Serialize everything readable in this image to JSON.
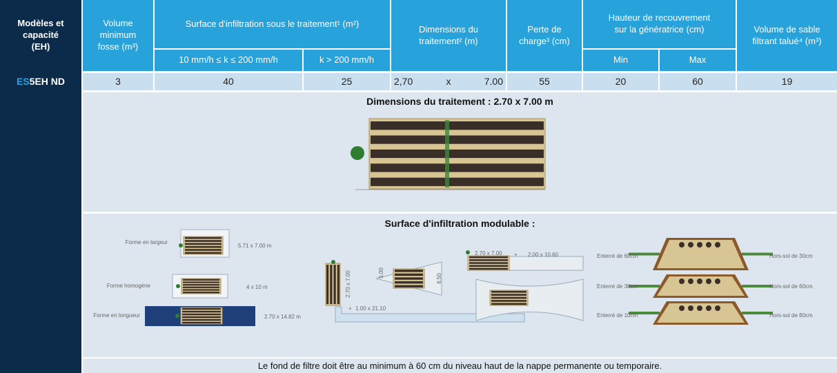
{
  "table": {
    "header": {
      "model": [
        "Modèles et",
        "capacité",
        "(EH)"
      ],
      "volume": [
        "Volume",
        "minimum",
        "fosse (m³)"
      ],
      "surface": "Surface d'infiltration sous le traitement¹ (m²)",
      "surface_low": "10 mm/h ≤ k ≤ 200 mm/h",
      "surface_high": "k > 200 mm/h",
      "dimensions": [
        "Dimensions du",
        "traitement² (m)"
      ],
      "perte": [
        "Perte de",
        "charge³ (cm)"
      ],
      "hauteur": [
        "Hauteur de recouvrement",
        "sur la génératrice (cm)"
      ],
      "min": "Min",
      "max": "Max",
      "sable": [
        "Volume de sable",
        "filtrant talué⁴ (m³)"
      ]
    },
    "row": {
      "model_prefix": "ES",
      "model": "5EH ND",
      "volume": "3",
      "surface_low": "40",
      "surface_high": "25",
      "dim_width": "2,70",
      "dim_sep": "x",
      "dim_length": "7.00",
      "perte": "55",
      "min": "20",
      "max": "60",
      "sable": "19"
    },
    "panel_dimensions": {
      "title": "Dimensions du traitement : 2.70 x 7.00 m"
    },
    "panel_surface": {
      "title": "Surface d'infiltration modulable :",
      "shapes": [
        {
          "name": "Forme en largeur",
          "size": "5.71 x 7.00 m"
        },
        {
          "name": "Forme homogène",
          "size": "4 x 10 m"
        },
        {
          "name": "Forme en longueur",
          "size": "2.70 x 14.82 m"
        }
      ],
      "middle": {
        "filter": "2.70 x 7.00",
        "plus": "+",
        "strip": "1.00 x 21.10",
        "trap_a": "5.00",
        "trap_b": "8.50"
      },
      "right": {
        "filter": "2.70 x 7.00",
        "plus": "+",
        "strip": "2.00 x 10.60"
      },
      "mounds": [
        {
          "buried": "Enterré de 60cm",
          "above": "Hors-sol de 30cm"
        },
        {
          "buried": "Enterré de 30cm",
          "above": "Hors-sol de 60cm"
        },
        {
          "buried": "Enterré de 10cm",
          "above": "Hors-sol de 80cm"
        }
      ]
    },
    "footer": "Le fond de filtre doit être au minimum à 60 cm du niveau haut de la nappe permanente ou temporaire."
  }
}
